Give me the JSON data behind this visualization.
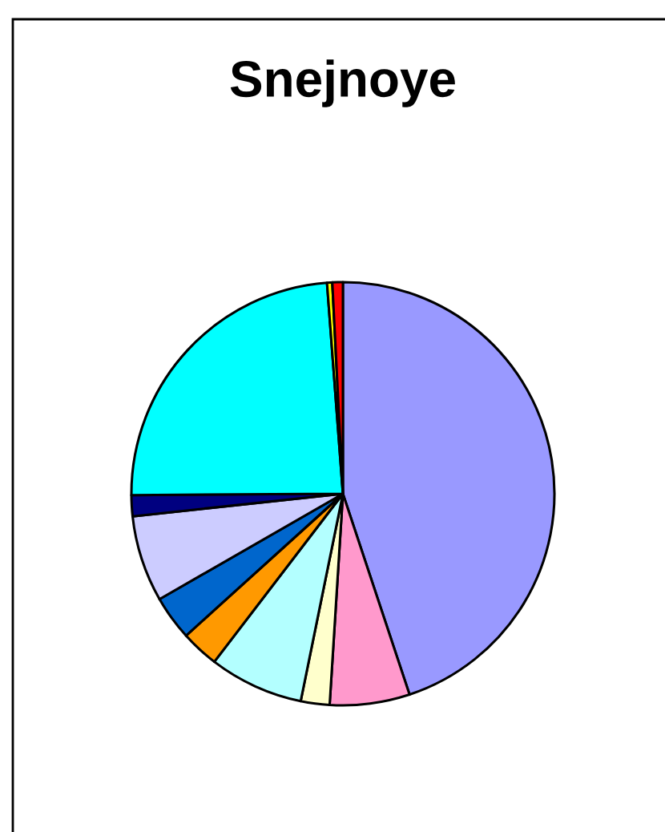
{
  "chart_data": {
    "type": "pie",
    "title": "Snejnoye",
    "categories": [
      null,
      null,
      null,
      null,
      null,
      null,
      null,
      null,
      null,
      null,
      null
    ],
    "values": [
      44.9,
      6.1,
      2.2,
      7.2,
      2.9,
      3.4,
      6.6,
      1.6,
      23.9,
      0.4,
      0.8
    ],
    "colors": [
      "#9999ff",
      "#ff99cc",
      "#ffffcc",
      "#b3ffff",
      "#ff9900",
      "#0066cc",
      "#ccccff",
      "#000080",
      "#00ffff",
      "#ffff00",
      "#ff0000"
    ]
  }
}
